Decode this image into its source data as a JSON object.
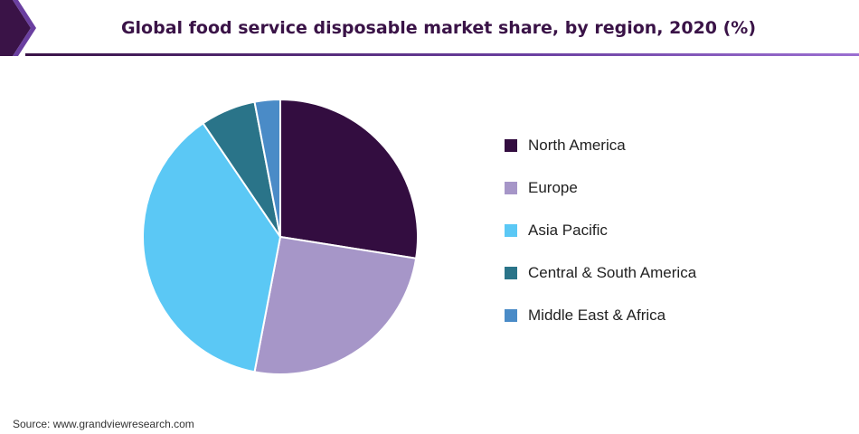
{
  "title": "Global food service disposable market share, by region, 2020 (%)",
  "source": "Source: www.grandviewresearch.com",
  "colors": {
    "accent_dark": "#3a1347",
    "accent_mid": "#6a3fa0",
    "accent_light": "#9b6fd1"
  },
  "chart_data": {
    "type": "pie",
    "start_angle_deg": 0,
    "direction": "clockwise",
    "legend_position": "right",
    "slices": [
      {
        "label": "North America",
        "value": 27.5,
        "color": "#330d40"
      },
      {
        "label": "Europe",
        "value": 25.5,
        "color": "#a696c8"
      },
      {
        "label": "Asia Pacific",
        "value": 37.5,
        "color": "#5bc8f5"
      },
      {
        "label": "Central & South America",
        "value": 6.5,
        "color": "#2a7489"
      },
      {
        "label": "Middle East & Africa",
        "value": 3.0,
        "color": "#4a8bc7"
      }
    ]
  }
}
